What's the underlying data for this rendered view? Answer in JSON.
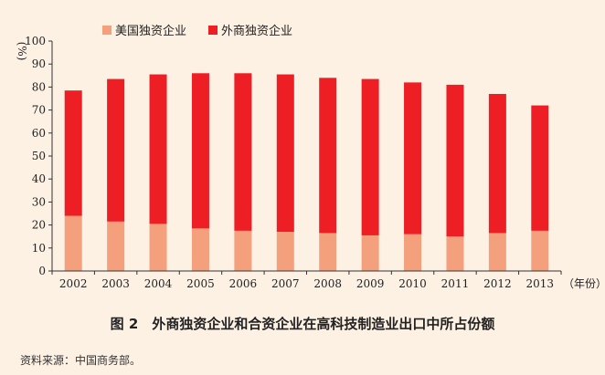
{
  "chart_data": {
    "type": "bar",
    "stacked": true,
    "categories": [
      "2002",
      "2003",
      "2004",
      "2005",
      "2006",
      "2007",
      "2008",
      "2009",
      "2010",
      "2011",
      "2012",
      "2013"
    ],
    "series": [
      {
        "name": "美国独资企业",
        "color": "#f4a07c",
        "values": [
          24,
          21.5,
          20.5,
          18.5,
          17.5,
          17,
          16.5,
          15.5,
          16,
          15,
          16.5,
          17.5
        ]
      },
      {
        "name": "外商独资企业",
        "color": "#ee1f24",
        "values": [
          54.5,
          62,
          65,
          67.5,
          68.5,
          68.5,
          67.5,
          68,
          66,
          66,
          60.5,
          54.5
        ]
      }
    ],
    "y_unit_label": "%",
    "x_unit_label": "（年份）",
    "ylim": [
      0,
      100
    ],
    "yticks": [
      0,
      10,
      20,
      30,
      40,
      50,
      60,
      70,
      80,
      90,
      100
    ],
    "legend_position": "top"
  },
  "caption": "图 2　外商独资企业和合资企业在高科技制造业出口中所占份额",
  "source": "资料来源：中国商务部。"
}
